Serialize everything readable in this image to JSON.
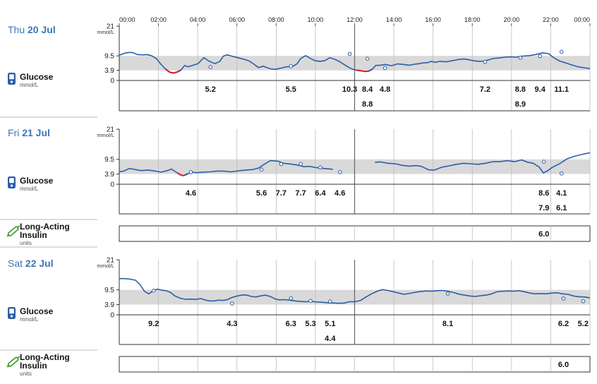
{
  "x_axis": {
    "hour_labels": [
      "00:00",
      "02:00",
      "04:00",
      "06:00",
      "08:00",
      "10:00",
      "12:00",
      "14:00",
      "16:00",
      "18:00",
      "20:00",
      "22:00",
      "00:00"
    ]
  },
  "glucose_axis": {
    "unit": "mmol/L",
    "max_label": "21",
    "ticks": [
      21,
      9.5,
      3.9,
      0
    ],
    "target_range": [
      3.9,
      9.5
    ]
  },
  "metrics": {
    "glucose": {
      "name": "Glucose",
      "unit": "mmol/L",
      "icon": "glucose-meter-icon"
    },
    "insulin": {
      "name_line1": "Long-Acting",
      "name_line2": "Insulin",
      "unit": "units",
      "icon": "insulin-pen-icon"
    }
  },
  "colors": {
    "line": "#2a5ea8",
    "low": "#e02030",
    "target_band": "#d9d9d9",
    "day_label": "#3a78b5",
    "meter_icon": "#2a5ea8",
    "pen_icon": "#3a9a2a"
  },
  "chart_data": [
    {
      "type": "line",
      "day": {
        "weekday": "Thu",
        "date": "20 Jul"
      },
      "ylim": [
        0,
        21
      ],
      "x_unit": "hours",
      "cgm": [
        [
          0,
          9.8
        ],
        [
          0.5,
          10.6
        ],
        [
          0.8,
          10.8
        ],
        [
          1.1,
          10.8
        ],
        [
          1.5,
          10.0
        ],
        [
          2,
          9.9
        ],
        [
          2.3,
          10.0
        ],
        [
          2.7,
          9.5
        ],
        [
          3.1,
          8.3
        ],
        [
          3.4,
          6.5
        ],
        [
          3.8,
          4.5
        ],
        [
          4.1,
          3.4
        ],
        [
          4.3,
          3.0
        ],
        [
          4.5,
          2.9
        ],
        [
          4.8,
          3.3
        ],
        [
          5.1,
          4.0
        ],
        [
          5.4,
          5.8
        ],
        [
          5.7,
          5.3
        ],
        [
          6.1,
          5.9
        ],
        [
          6.5,
          6.5
        ],
        [
          7,
          8.8
        ],
        [
          7.4,
          7.5
        ],
        [
          7.9,
          6.5
        ],
        [
          8.3,
          7.3
        ],
        [
          8.6,
          9.4
        ],
        [
          8.9,
          9.9
        ],
        [
          9.3,
          9.4
        ],
        [
          9.8,
          8.8
        ],
        [
          10.3,
          8.2
        ],
        [
          10.7,
          7.6
        ],
        [
          11.1,
          6.4
        ],
        [
          11.5,
          5.0
        ],
        [
          11.9,
          5.5
        ],
        [
          12.2,
          5.0
        ],
        [
          12.5,
          4.5
        ],
        [
          12.9,
          4.3
        ],
        [
          13.3,
          4.7
        ],
        [
          13.8,
          5.3
        ],
        [
          14.3,
          5.3
        ],
        [
          14.7,
          6.5
        ],
        [
          15,
          8.5
        ],
        [
          15.4,
          9.6
        ],
        [
          15.8,
          8.5
        ],
        [
          16.2,
          7.6
        ],
        [
          16.6,
          7.4
        ],
        [
          17,
          7.7
        ],
        [
          17.4,
          8.8
        ],
        [
          17.8,
          8.2
        ],
        [
          18.2,
          7.3
        ],
        [
          18.6,
          6.1
        ],
        [
          19,
          5.0
        ],
        [
          19.3,
          4.3
        ],
        [
          19.6,
          4.0
        ],
        [
          19.9,
          3.8
        ],
        [
          20.3,
          3.5
        ],
        [
          20.6,
          3.6
        ],
        [
          20.9,
          4.3
        ],
        [
          21.2,
          5.8
        ],
        [
          21.6,
          5.9
        ],
        [
          22,
          6.2
        ],
        [
          22.5,
          5.7
        ],
        [
          23,
          6.4
        ],
        [
          23.5,
          6.2
        ],
        [
          24,
          5.9
        ],
        [
          24.4,
          6.3
        ],
        [
          24.8,
          6.5
        ],
        [
          25.1,
          6.8
        ],
        [
          25.5,
          6.9
        ],
        [
          25.8,
          7.4
        ],
        [
          26.1,
          7.0
        ],
        [
          26.5,
          7.4
        ],
        [
          27,
          7.2
        ],
        [
          27.5,
          7.6
        ],
        [
          28,
          8.1
        ],
        [
          28.5,
          8.3
        ],
        [
          28.9,
          8.0
        ],
        [
          29.3,
          7.6
        ],
        [
          29.7,
          7.4
        ],
        [
          30.1,
          7.5
        ],
        [
          30.5,
          7.9
        ],
        [
          30.9,
          8.5
        ],
        [
          31.4,
          8.7
        ],
        [
          31.9,
          9.0
        ],
        [
          32.3,
          9.1
        ],
        [
          32.8,
          9.0
        ],
        [
          33.3,
          9.4
        ],
        [
          33.9,
          9.6
        ],
        [
          34.4,
          10.0
        ],
        [
          35,
          10.7
        ],
        [
          35.5,
          10.3
        ],
        [
          35.9,
          8.8
        ],
        [
          36.4,
          7.5
        ],
        [
          36.9,
          6.8
        ],
        [
          37.4,
          6.0
        ],
        [
          37.9,
          5.3
        ],
        [
          38.4,
          4.9
        ],
        [
          38.9,
          4.6
        ]
      ],
      "bg_readings": [
        {
          "time": 4.4,
          "value": 5.2,
          "label_row": 1
        },
        {
          "time": 8.5,
          "value": 5.5,
          "label_row": 1
        },
        {
          "time": 11.5,
          "value": 10.3,
          "label_row": 1
        },
        {
          "time": 12.4,
          "value": 8.4,
          "label_row": 1
        },
        {
          "time": 12.4,
          "value": 8.8,
          "label_row": 2
        },
        {
          "time": 13.3,
          "value": 4.8,
          "label_row": 1
        },
        {
          "time": 18.4,
          "value": 7.2,
          "label_row": 1
        },
        {
          "time": 20.2,
          "value": 8.8,
          "label_row": 1
        },
        {
          "time": 20.2,
          "value": 8.9,
          "label_row": 2
        },
        {
          "time": 21.2,
          "value": 9.4,
          "label_row": 1
        },
        {
          "time": 22.3,
          "value": 11.1,
          "label_row": 1
        }
      ]
    },
    {
      "type": "line",
      "day": {
        "weekday": "Fri",
        "date": "21 Jul"
      },
      "ylim": [
        0,
        21
      ],
      "x_unit": "hours",
      "cgm_segments": [
        [
          [
            0,
            4.8
          ],
          [
            0.3,
            5.0
          ],
          [
            0.7,
            6.0
          ],
          [
            1.1,
            5.6
          ],
          [
            1.5,
            5.2
          ],
          [
            2,
            5.4
          ],
          [
            2.5,
            5.0
          ],
          [
            2.9,
            4.6
          ],
          [
            3.3,
            5.2
          ],
          [
            3.6,
            5.8
          ],
          [
            4,
            4.3
          ],
          [
            4.2,
            3.6
          ],
          [
            4.4,
            3.3
          ],
          [
            4.7,
            3.9
          ],
          [
            5,
            4.7
          ],
          [
            5.3,
            4.4
          ],
          [
            5.7,
            4.6
          ],
          [
            6.2,
            4.7
          ],
          [
            6.7,
            5.0
          ],
          [
            7.2,
            5.0
          ],
          [
            7.7,
            4.7
          ],
          [
            8.2,
            5.1
          ],
          [
            8.7,
            5.4
          ],
          [
            9.2,
            5.6
          ],
          [
            9.6,
            6.2
          ],
          [
            10,
            7.7
          ],
          [
            10.4,
            9.0
          ],
          [
            10.9,
            8.8
          ],
          [
            11.3,
            8.0
          ],
          [
            11.8,
            7.7
          ],
          [
            12.3,
            7.3
          ],
          [
            12.7,
            6.7
          ],
          [
            13.1,
            6.8
          ],
          [
            13.6,
            6.3
          ],
          [
            14.1,
            6.0
          ],
          [
            14.7,
            5.7
          ]
        ],
        [
          [
            17.6,
            8.4
          ],
          [
            18,
            8.5
          ],
          [
            18.5,
            8.0
          ],
          [
            19,
            7.8
          ],
          [
            19.5,
            7.2
          ],
          [
            20,
            6.9
          ],
          [
            20.4,
            7.1
          ],
          [
            20.8,
            6.8
          ],
          [
            21.3,
            5.5
          ],
          [
            21.7,
            5.4
          ],
          [
            22.2,
            6.5
          ],
          [
            22.7,
            7.0
          ],
          [
            23.2,
            7.6
          ],
          [
            23.7,
            8.0
          ],
          [
            24.2,
            7.8
          ],
          [
            24.7,
            7.6
          ],
          [
            25.2,
            8.0
          ],
          [
            25.7,
            8.6
          ],
          [
            26.2,
            8.6
          ],
          [
            26.7,
            9.0
          ],
          [
            27.2,
            8.6
          ],
          [
            27.7,
            9.3
          ],
          [
            28.1,
            8.4
          ],
          [
            28.5,
            8.0
          ],
          [
            28.9,
            6.6
          ],
          [
            29.2,
            4.3
          ],
          [
            29.5,
            5.2
          ],
          [
            29.8,
            6.4
          ],
          [
            30.3,
            7.8
          ],
          [
            30.8,
            9.6
          ],
          [
            31.3,
            10.6
          ],
          [
            31.8,
            11.3
          ],
          [
            32.4,
            12.0
          ]
        ]
      ],
      "bg_readings": [
        {
          "time": 3.4,
          "value": 4.6,
          "label_row": 1
        },
        {
          "time": 7.0,
          "value": 5.6,
          "label_row": 1
        },
        {
          "time": 8.0,
          "value": 7.7,
          "label_row": 1
        },
        {
          "time": 9.0,
          "value": 7.7,
          "label_row": 1
        },
        {
          "time": 10.0,
          "value": 6.4,
          "label_row": 1
        },
        {
          "time": 11.0,
          "value": 4.6,
          "label_row": 1
        },
        {
          "time": 21.4,
          "value": 8.6,
          "label_row": 1
        },
        {
          "time": 21.4,
          "value": 7.9,
          "label_row": 2
        },
        {
          "time": 22.3,
          "value": 4.1,
          "label_row": 1
        },
        {
          "time": 22.3,
          "value": 6.1,
          "label_row": 2
        }
      ],
      "insulin_doses": [
        {
          "time": 21.4,
          "value": 6.0
        }
      ]
    },
    {
      "type": "line",
      "day": {
        "weekday": "Sat",
        "date": "22 Jul"
      },
      "ylim": [
        0,
        21
      ],
      "x_unit": "hours",
      "cgm": [
        [
          0,
          13.8
        ],
        [
          0.5,
          13.8
        ],
        [
          1,
          13.6
        ],
        [
          1.5,
          13.2
        ],
        [
          1.9,
          11.5
        ],
        [
          2.3,
          9.0
        ],
        [
          2.7,
          8.0
        ],
        [
          3.1,
          9.2
        ],
        [
          3.5,
          9.8
        ],
        [
          3.9,
          9.4
        ],
        [
          4.3,
          9.2
        ],
        [
          4.7,
          8.5
        ],
        [
          5.1,
          7.2
        ],
        [
          5.6,
          6.3
        ],
        [
          6.1,
          5.9
        ],
        [
          6.5,
          6.0
        ],
        [
          7,
          5.9
        ],
        [
          7.5,
          6.2
        ],
        [
          7.9,
          5.6
        ],
        [
          8.3,
          5.3
        ],
        [
          8.7,
          5.3
        ],
        [
          9.1,
          5.6
        ],
        [
          9.5,
          5.5
        ],
        [
          9.9,
          5.8
        ],
        [
          10.3,
          6.6
        ],
        [
          10.8,
          7.2
        ],
        [
          11.3,
          7.6
        ],
        [
          11.7,
          7.5
        ],
        [
          12.1,
          7.0
        ],
        [
          12.5,
          6.8
        ],
        [
          12.9,
          7.2
        ],
        [
          13.4,
          7.5
        ],
        [
          13.9,
          6.9
        ],
        [
          14.3,
          6.0
        ],
        [
          14.7,
          5.7
        ],
        [
          15.1,
          5.8
        ],
        [
          15.6,
          5.6
        ],
        [
          16.1,
          5.3
        ],
        [
          16.6,
          5.1
        ],
        [
          17.1,
          5.0
        ],
        [
          17.6,
          5.1
        ],
        [
          18.1,
          4.9
        ],
        [
          18.6,
          4.8
        ],
        [
          19.1,
          4.6
        ],
        [
          19.6,
          4.5
        ],
        [
          20.1,
          4.4
        ],
        [
          20.6,
          4.5
        ],
        [
          21.1,
          5.0
        ],
        [
          21.6,
          5.0
        ],
        [
          22.1,
          5.5
        ],
        [
          22.6,
          6.8
        ],
        [
          23.1,
          8.0
        ],
        [
          23.6,
          9.0
        ],
        [
          24.1,
          9.6
        ],
        [
          24.6,
          9.3
        ],
        [
          25.1,
          8.8
        ],
        [
          25.6,
          8.3
        ],
        [
          26.1,
          7.8
        ],
        [
          26.6,
          8.2
        ],
        [
          27.1,
          8.6
        ],
        [
          27.6,
          8.9
        ],
        [
          28.1,
          9.1
        ],
        [
          28.6,
          9.0
        ],
        [
          29.1,
          9.2
        ],
        [
          29.6,
          9.3
        ],
        [
          30.1,
          9.0
        ],
        [
          30.6,
          8.5
        ],
        [
          31.1,
          7.9
        ],
        [
          31.6,
          7.5
        ],
        [
          32.1,
          7.2
        ],
        [
          32.6,
          7.0
        ],
        [
          33.1,
          7.3
        ],
        [
          33.6,
          7.5
        ],
        [
          34.1,
          8.0
        ],
        [
          34.6,
          8.8
        ],
        [
          35.1,
          9.0
        ],
        [
          35.6,
          9.1
        ],
        [
          36.1,
          9.0
        ],
        [
          36.6,
          9.2
        ],
        [
          37.1,
          8.8
        ],
        [
          37.6,
          8.3
        ],
        [
          38.1,
          8.0
        ],
        [
          38.6,
          8.1
        ],
        [
          39.1,
          8.0
        ],
        [
          39.6,
          8.3
        ],
        [
          40.1,
          8.4
        ],
        [
          40.6,
          8.0
        ],
        [
          41.1,
          7.8
        ],
        [
          41.6,
          7.2
        ],
        [
          42.1,
          6.9
        ],
        [
          42.6,
          6.8
        ],
        [
          43.1,
          6.5
        ]
      ],
      "bg_readings": [
        {
          "time": 1.5,
          "value": 9.2,
          "label_row": 1
        },
        {
          "time": 5.5,
          "value": 4.3,
          "label_row": 1
        },
        {
          "time": 8.5,
          "value": 6.3,
          "label_row": 1
        },
        {
          "time": 9.5,
          "value": 5.3,
          "label_row": 1
        },
        {
          "time": 10.5,
          "value": 5.1,
          "label_row": 1
        },
        {
          "time": 10.5,
          "value": 4.4,
          "label_row": 2
        },
        {
          "time": 16.5,
          "value": 8.1,
          "label_row": 1
        },
        {
          "time": 22.4,
          "value": 6.2,
          "label_row": 1
        },
        {
          "time": 23.4,
          "value": 5.2,
          "label_row": 1
        }
      ],
      "insulin_doses": [
        {
          "time": 22.4,
          "value": 6.0
        }
      ]
    }
  ]
}
